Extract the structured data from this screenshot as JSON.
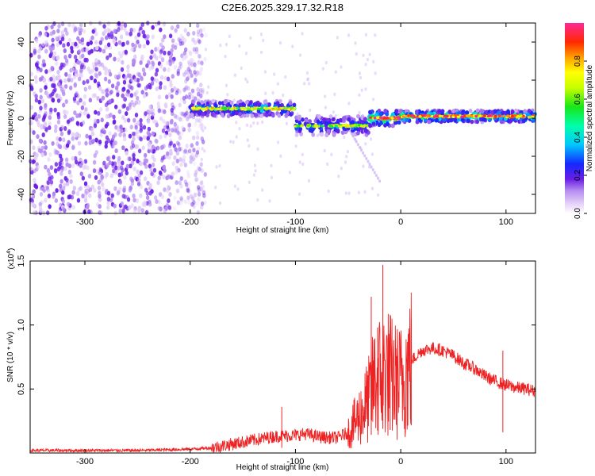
{
  "title": "C2E6.2025.329.17.32.R18",
  "chart_data": [
    {
      "type": "heatmap",
      "xlabel": "Height of straight line (km)",
      "ylabel": "Frequency (Hz)",
      "xlim": [
        -352,
        128
      ],
      "ylim": [
        -50,
        50
      ],
      "xticks": [
        -300,
        -200,
        -100,
        0,
        100
      ],
      "yticks": [
        -40,
        -20,
        0,
        20,
        40
      ],
      "colorbar": {
        "label": "Normalized spectral amplitude",
        "range": [
          0,
          1
        ],
        "ticks": [
          "0.0",
          "0.2",
          "0.4",
          "0.6",
          "0.8"
        ]
      },
      "regions": [
        {
          "x_range": [
            -352,
            -185
          ],
          "y_range": [
            -50,
            50
          ],
          "amplitude": 0.1,
          "description_value": "broadband noise"
        },
        {
          "x_range": [
            -200,
            -100
          ],
          "center_hz": 5,
          "halfwidth_hz": 4,
          "amplitude": 0.4
        },
        {
          "x_range": [
            -100,
            -30
          ],
          "center_hz": -4,
          "halfwidth_hz": 5,
          "amplitude": 0.35
        },
        {
          "x_range": [
            -30,
            0
          ],
          "center_hz": 0,
          "halfwidth_hz": 4,
          "amplitude": 0.6
        },
        {
          "x_range": [
            0,
            128
          ],
          "center_hz": 1,
          "halfwidth_hz": 3,
          "amplitude": 0.55
        }
      ]
    },
    {
      "type": "line",
      "xlabel": "Height of straight line (km)",
      "ylabel": "SNR (10 * v/v)",
      "y_exponent": "(x10",
      "y_exponent_power": "4",
      "xlim": [
        -352,
        128
      ],
      "ylim": [
        0,
        1.5
      ],
      "xticks": [
        -300,
        -200,
        -100,
        0,
        100
      ],
      "yticks": [
        "0.5",
        "1.0",
        "1.5"
      ],
      "series": [
        {
          "color": "#ee2222",
          "x": [
            -350,
            -300,
            -250,
            -200,
            -180,
            -160,
            -140,
            -120,
            -100,
            -90,
            -80,
            -70,
            -60,
            -50,
            -40,
            -30,
            -25,
            -20,
            -15,
            -10,
            -5,
            0,
            10,
            20,
            30,
            40,
            50,
            60,
            70,
            80,
            90,
            100,
            110,
            120,
            128
          ],
          "y": [
            0.02,
            0.02,
            0.02,
            0.03,
            0.04,
            0.07,
            0.1,
            0.13,
            0.14,
            0.15,
            0.13,
            0.12,
            0.12,
            0.16,
            0.28,
            0.42,
            0.55,
            0.6,
            0.65,
            0.6,
            0.56,
            0.55,
            0.72,
            0.8,
            0.82,
            0.8,
            0.76,
            0.7,
            0.66,
            0.6,
            0.56,
            0.53,
            0.51,
            0.5,
            0.48
          ]
        }
      ],
      "peaks": [
        {
          "x": -28,
          "y": 1.22
        },
        {
          "x": -22,
          "y": 0.98
        },
        {
          "x": -17,
          "y": 1.47
        },
        {
          "x": -10,
          "y": 1.08
        },
        {
          "x": 10,
          "y": 1.05
        },
        {
          "x": -113,
          "y": 0.36
        },
        {
          "x": 97,
          "y": 0.8
        }
      ]
    }
  ],
  "colors": {
    "line": "#ee2222",
    "axis": "#000000",
    "noise": "#7a2ae6"
  }
}
